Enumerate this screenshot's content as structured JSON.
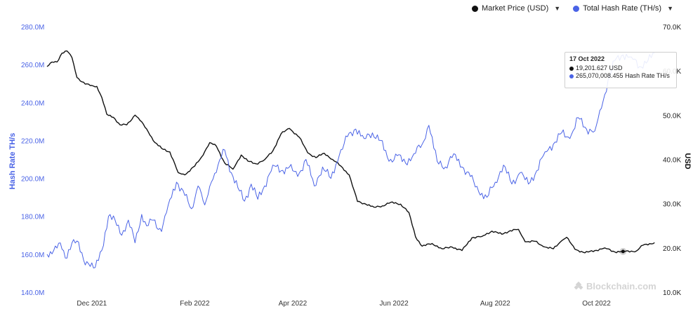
{
  "legend": {
    "price_label": "Market Price (USD)",
    "hash_label": "Total Hash Rate (TH/s)",
    "price_color": "#111111",
    "hash_color": "#4a63e6"
  },
  "tooltip": {
    "date": "17 Oct 2022",
    "price_text": "19,201.627 USD",
    "hash_text": "265,070,008.455 Hash Rate TH/s"
  },
  "watermark": "Blockchain.com",
  "chart_data": {
    "type": "line",
    "x_tick_labels": [
      "Dec 2021",
      "Feb 2022",
      "Apr 2022",
      "Jun 2022",
      "Aug 2022",
      "Oct 2022"
    ],
    "x_range": [
      "2021-11-04",
      "2022-11-07"
    ],
    "left_axis": {
      "label": "Hash Rate TH/s",
      "ticks": [
        "140.0M",
        "160.0M",
        "180.0M",
        "200.0M",
        "220.0M",
        "240.0M",
        "260.0M",
        "280.0M"
      ],
      "ylim": [
        140000000,
        280000000
      ]
    },
    "right_axis": {
      "label": "USD",
      "ticks": [
        "10.0K",
        "20.0K",
        "30.0K",
        "40.0K",
        "50.0K",
        "60.0K",
        "70.0K"
      ],
      "ylim": [
        10000,
        70000
      ]
    },
    "series": [
      {
        "name": "Market Price (USD)",
        "axis": "right",
        "color": "#111111",
        "points": [
          [
            "2021-11-04",
            61000
          ],
          [
            "2021-11-07",
            62000
          ],
          [
            "2021-11-10",
            62000
          ],
          [
            "2021-11-13",
            64000
          ],
          [
            "2021-11-16",
            64500
          ],
          [
            "2021-11-19",
            63000
          ],
          [
            "2021-11-22",
            58500
          ],
          [
            "2021-11-27",
            57000
          ],
          [
            "2021-12-01",
            56700
          ],
          [
            "2021-12-04",
            56500
          ],
          [
            "2021-12-07",
            54000
          ],
          [
            "2021-12-10",
            50200
          ],
          [
            "2021-12-14",
            49500
          ],
          [
            "2021-12-18",
            47800
          ],
          [
            "2021-12-22",
            47800
          ],
          [
            "2021-12-27",
            50000
          ],
          [
            "2021-12-31",
            48500
          ],
          [
            "2022-01-04",
            46200
          ],
          [
            "2022-01-08",
            43800
          ],
          [
            "2022-01-12",
            42500
          ],
          [
            "2022-01-17",
            41700
          ],
          [
            "2022-01-22",
            37000
          ],
          [
            "2022-01-26",
            36500
          ],
          [
            "2022-02-01",
            38500
          ],
          [
            "2022-02-05",
            40500
          ],
          [
            "2022-02-10",
            43800
          ],
          [
            "2022-02-14",
            43000
          ],
          [
            "2022-02-19",
            39200
          ],
          [
            "2022-02-24",
            37800
          ],
          [
            "2022-03-01",
            41000
          ],
          [
            "2022-03-05",
            39600
          ],
          [
            "2022-03-10",
            39000
          ],
          [
            "2022-03-15",
            39900
          ],
          [
            "2022-03-20",
            41900
          ],
          [
            "2022-03-25",
            45800
          ],
          [
            "2022-03-30",
            47000
          ],
          [
            "2022-04-05",
            45000
          ],
          [
            "2022-04-10",
            41500
          ],
          [
            "2022-04-15",
            40400
          ],
          [
            "2022-04-20",
            41400
          ],
          [
            "2022-04-25",
            40000
          ],
          [
            "2022-04-30",
            38500
          ],
          [
            "2022-05-05",
            36500
          ],
          [
            "2022-05-10",
            30500
          ],
          [
            "2022-05-15",
            29900
          ],
          [
            "2022-05-20",
            29200
          ],
          [
            "2022-05-25",
            29500
          ],
          [
            "2022-05-30",
            30300
          ],
          [
            "2022-06-05",
            29900
          ],
          [
            "2022-06-10",
            28000
          ],
          [
            "2022-06-14",
            22500
          ],
          [
            "2022-06-18",
            20400
          ],
          [
            "2022-06-24",
            21000
          ],
          [
            "2022-06-30",
            19800
          ],
          [
            "2022-07-06",
            20200
          ],
          [
            "2022-07-12",
            19400
          ],
          [
            "2022-07-18",
            22300
          ],
          [
            "2022-07-24",
            22600
          ],
          [
            "2022-07-30",
            23800
          ],
          [
            "2022-08-05",
            23100
          ],
          [
            "2022-08-10",
            23900
          ],
          [
            "2022-08-15",
            24200
          ],
          [
            "2022-08-19",
            21400
          ],
          [
            "2022-08-25",
            21500
          ],
          [
            "2022-08-30",
            20300
          ],
          [
            "2022-09-05",
            19800
          ],
          [
            "2022-09-10",
            21600
          ],
          [
            "2022-09-13",
            22400
          ],
          [
            "2022-09-18",
            19700
          ],
          [
            "2022-09-24",
            18900
          ],
          [
            "2022-09-30",
            19400
          ],
          [
            "2022-10-06",
            20000
          ],
          [
            "2022-10-12",
            19100
          ],
          [
            "2022-10-17",
            19201.627
          ],
          [
            "2022-10-25",
            19300
          ],
          [
            "2022-10-29",
            20600
          ],
          [
            "2022-11-05",
            21200
          ]
        ]
      },
      {
        "name": "Total Hash Rate (TH/s)",
        "axis": "left",
        "color": "#4a63e6",
        "points": [
          [
            "2021-11-04",
            160000000
          ],
          [
            "2021-11-08",
            162000000
          ],
          [
            "2021-11-12",
            166000000
          ],
          [
            "2021-11-15",
            158000000
          ],
          [
            "2021-11-19",
            166000000
          ],
          [
            "2021-11-22",
            167000000
          ],
          [
            "2021-11-26",
            157000000
          ],
          [
            "2021-11-29",
            155000000
          ],
          [
            "2021-12-03",
            153000000
          ],
          [
            "2021-12-07",
            162000000
          ],
          [
            "2021-12-11",
            180000000
          ],
          [
            "2021-12-15",
            178000000
          ],
          [
            "2021-12-19",
            170000000
          ],
          [
            "2021-12-23",
            178000000
          ],
          [
            "2021-12-27",
            166000000
          ],
          [
            "2021-12-31",
            181000000
          ],
          [
            "2022-01-03",
            175000000
          ],
          [
            "2022-01-07",
            178000000
          ],
          [
            "2022-01-12",
            172000000
          ],
          [
            "2022-01-16",
            186000000
          ],
          [
            "2022-01-21",
            198000000
          ],
          [
            "2022-01-26",
            191000000
          ],
          [
            "2022-01-30",
            184000000
          ],
          [
            "2022-02-03",
            196000000
          ],
          [
            "2022-02-07",
            186000000
          ],
          [
            "2022-02-11",
            198000000
          ],
          [
            "2022-02-15",
            207000000
          ],
          [
            "2022-02-19",
            215000000
          ],
          [
            "2022-02-23",
            203000000
          ],
          [
            "2022-02-27",
            195000000
          ],
          [
            "2022-03-03",
            188000000
          ],
          [
            "2022-03-07",
            197000000
          ],
          [
            "2022-03-11",
            189000000
          ],
          [
            "2022-03-15",
            196000000
          ],
          [
            "2022-03-20",
            207000000
          ],
          [
            "2022-03-25",
            204000000
          ],
          [
            "2022-03-30",
            206000000
          ],
          [
            "2022-04-04",
            201000000
          ],
          [
            "2022-04-09",
            210000000
          ],
          [
            "2022-04-14",
            196000000
          ],
          [
            "2022-04-19",
            206000000
          ],
          [
            "2022-04-24",
            200000000
          ],
          [
            "2022-04-29",
            212000000
          ],
          [
            "2022-05-04",
            222000000
          ],
          [
            "2022-05-09",
            226000000
          ],
          [
            "2022-05-14",
            221000000
          ],
          [
            "2022-05-19",
            224000000
          ],
          [
            "2022-05-24",
            220000000
          ],
          [
            "2022-05-29",
            209000000
          ],
          [
            "2022-06-03",
            212000000
          ],
          [
            "2022-06-08",
            208000000
          ],
          [
            "2022-06-13",
            213000000
          ],
          [
            "2022-06-18",
            218000000
          ],
          [
            "2022-06-22",
            228000000
          ],
          [
            "2022-06-27",
            209000000
          ],
          [
            "2022-07-02",
            206000000
          ],
          [
            "2022-07-07",
            213000000
          ],
          [
            "2022-07-12",
            206000000
          ],
          [
            "2022-07-17",
            201000000
          ],
          [
            "2022-07-22",
            193000000
          ],
          [
            "2022-07-27",
            190000000
          ],
          [
            "2022-08-01",
            198000000
          ],
          [
            "2022-08-06",
            207000000
          ],
          [
            "2022-08-11",
            197000000
          ],
          [
            "2022-08-16",
            203000000
          ],
          [
            "2022-08-21",
            197000000
          ],
          [
            "2022-08-26",
            204000000
          ],
          [
            "2022-08-31",
            214000000
          ],
          [
            "2022-09-05",
            218000000
          ],
          [
            "2022-09-10",
            224000000
          ],
          [
            "2022-09-15",
            221000000
          ],
          [
            "2022-09-20",
            232000000
          ],
          [
            "2022-09-25",
            226000000
          ],
          [
            "2022-09-30",
            225000000
          ],
          [
            "2022-10-04",
            237000000
          ],
          [
            "2022-10-08",
            252000000
          ],
          [
            "2022-10-12",
            262000000
          ],
          [
            "2022-10-17",
            265070008.455
          ],
          [
            "2022-10-22",
            264000000
          ],
          [
            "2022-10-27",
            259000000
          ],
          [
            "2022-11-01",
            262000000
          ],
          [
            "2022-11-05",
            266000000
          ]
        ]
      }
    ],
    "highlight": {
      "date": "2022-10-17",
      "series": "Market Price (USD)"
    }
  }
}
